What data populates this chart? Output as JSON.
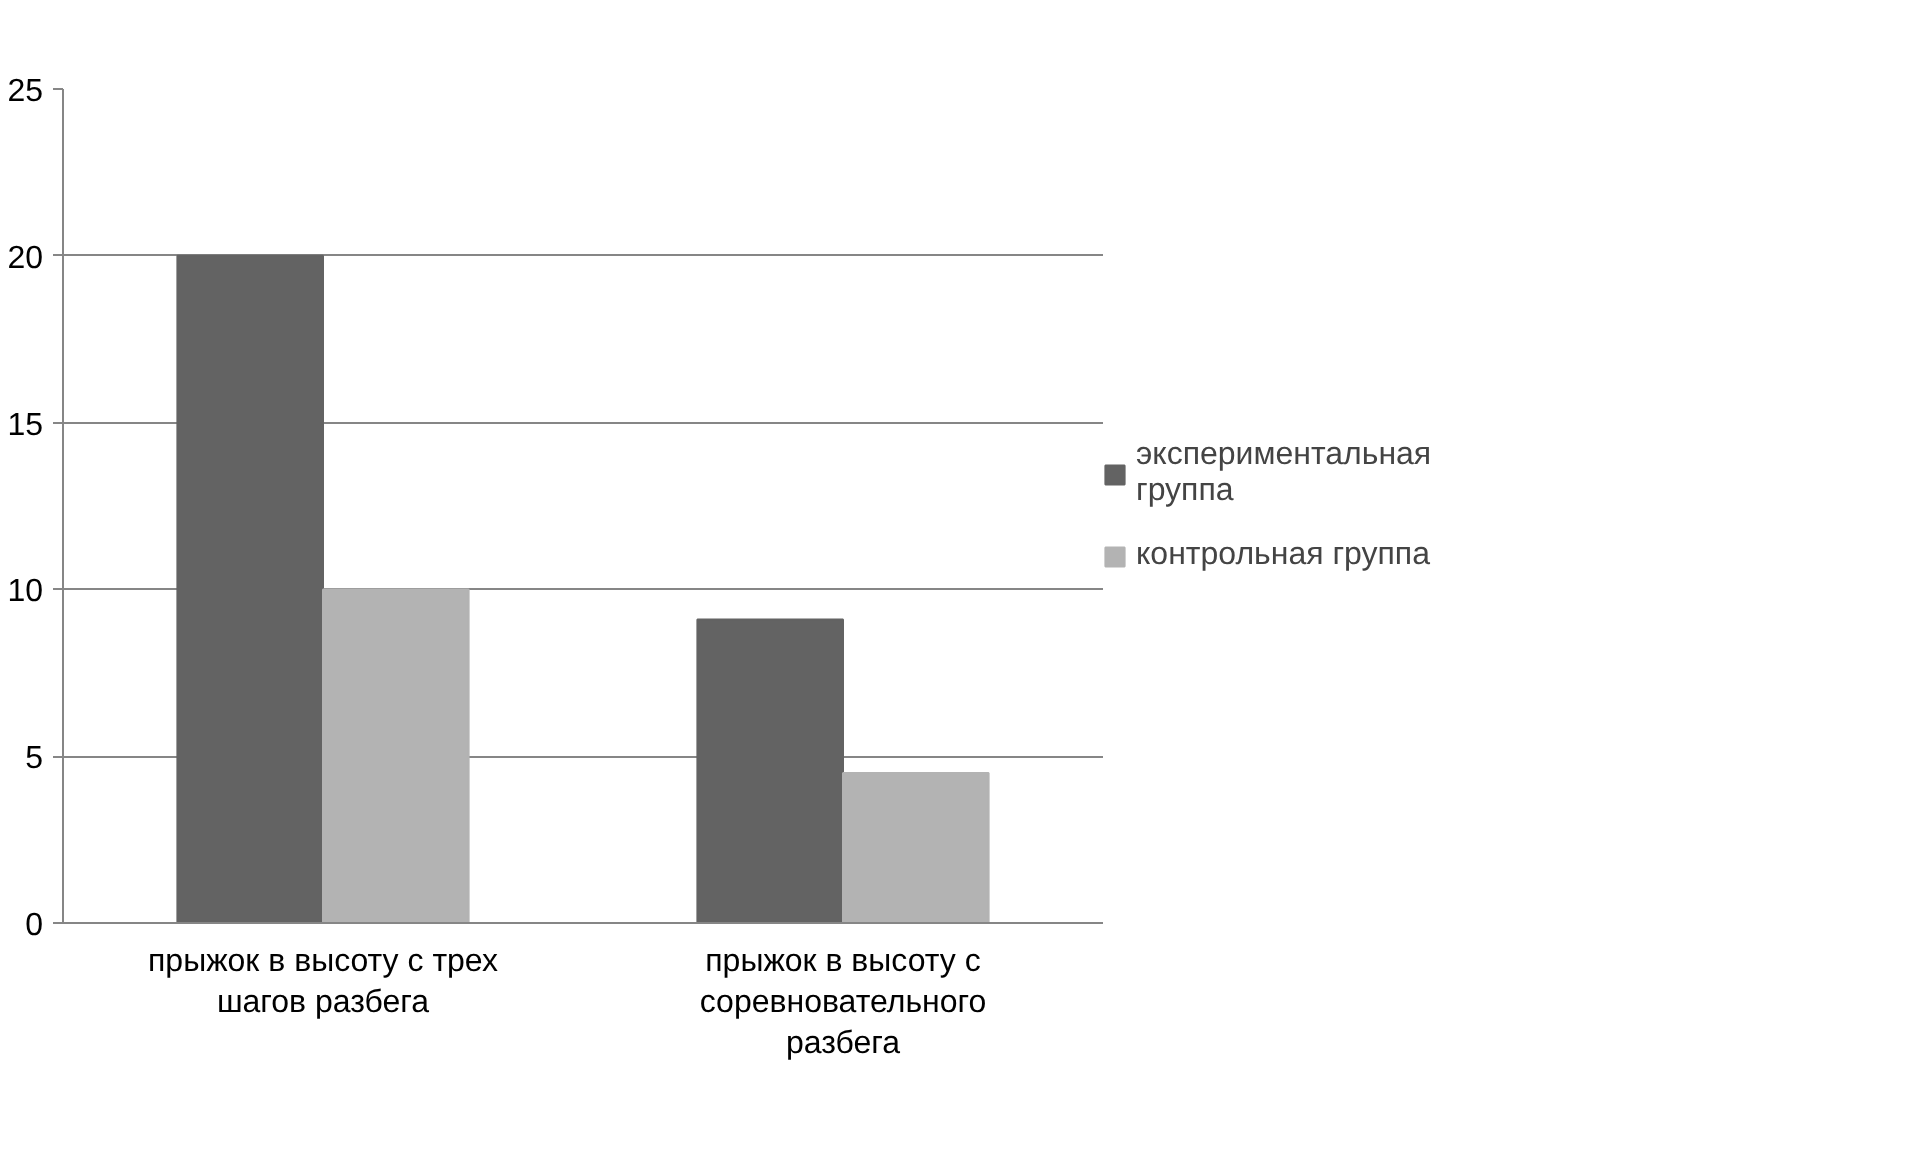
{
  "chart_data": {
    "type": "bar",
    "categories": [
      "прыжок в высоту с трех шагов разбега",
      "прыжок в высоту с соревновательного разбега"
    ],
    "series": [
      {
        "name": "экспериментальная группа",
        "color": "#636363",
        "values": [
          20,
          9.1
        ]
      },
      {
        "name": "контрольная группа",
        "color": "#b3b3b3",
        "values": [
          10,
          4.5
        ]
      }
    ],
    "ylim": [
      0,
      25
    ],
    "yticks": [
      0,
      5,
      10,
      15,
      20,
      25
    ],
    "grid": "y",
    "legend": "right"
  }
}
